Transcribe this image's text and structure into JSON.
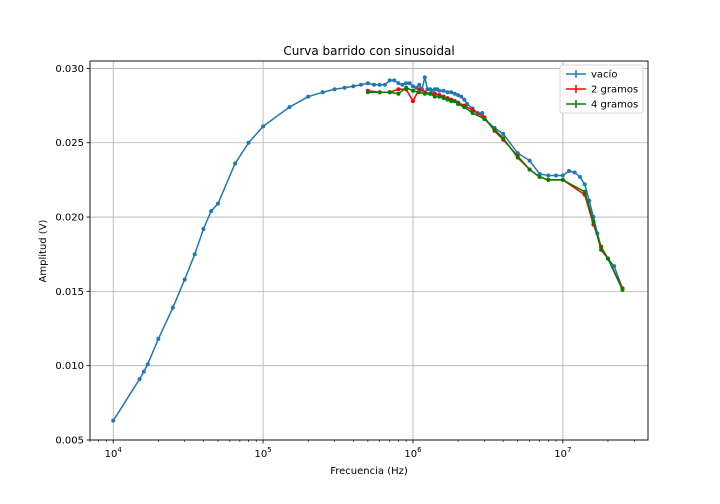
{
  "chart_data": {
    "type": "line",
    "title": "Curva barrido con sinusoidal",
    "xlabel": "Frecuencia (Hz)",
    "ylabel": "Amplitud (V)",
    "xscale": "log",
    "xlim": [
      7000,
      37000000
    ],
    "ylim": [
      0.005,
      0.0305
    ],
    "xticks": [
      {
        "value": 10000,
        "base": "10",
        "exp": "4"
      },
      {
        "value": 100000,
        "base": "10",
        "exp": "5"
      },
      {
        "value": 1000000,
        "base": "10",
        "exp": "6"
      },
      {
        "value": 10000000,
        "base": "10",
        "exp": "7"
      }
    ],
    "yticks": [
      {
        "value": 0.005,
        "label": "0.005"
      },
      {
        "value": 0.01,
        "label": "0.010"
      },
      {
        "value": 0.015,
        "label": "0.015"
      },
      {
        "value": 0.02,
        "label": "0.020"
      },
      {
        "value": 0.025,
        "label": "0.025"
      },
      {
        "value": 0.03,
        "label": "0.030"
      }
    ],
    "grid": true,
    "legend_position": "top-right",
    "series": [
      {
        "name": "vacío",
        "color": "#1f77b4",
        "x": [
          10000,
          15000,
          16000,
          17000,
          20000,
          25000,
          30000,
          35000,
          40000,
          45000,
          50000,
          65000,
          80000,
          100000,
          150000,
          200000,
          250000,
          300000,
          350000,
          400000,
          450000,
          500000,
          550000,
          600000,
          650000,
          700000,
          750000,
          800000,
          850000,
          900000,
          950000,
          1000000,
          1050000,
          1100000,
          1150000,
          1200000,
          1250000,
          1300000,
          1350000,
          1400000,
          1450000,
          1500000,
          1600000,
          1700000,
          1800000,
          1900000,
          2000000,
          2100000,
          2200000,
          2300000,
          2500000,
          2700000,
          2900000,
          3000000,
          3500000,
          4000000,
          5000000,
          6000000,
          7000000,
          8000000,
          9000000,
          10000000,
          11000000,
          12000000,
          13000000,
          14000000,
          15000000,
          16000000,
          17000000,
          18000000,
          20000000,
          22000000,
          25000000
        ],
        "values": [
          0.0063,
          0.0091,
          0.0096,
          0.0101,
          0.0118,
          0.0139,
          0.0158,
          0.0175,
          0.0192,
          0.0204,
          0.0209,
          0.0236,
          0.025,
          0.0261,
          0.0274,
          0.0281,
          0.0284,
          0.0286,
          0.0287,
          0.0288,
          0.0289,
          0.029,
          0.0289,
          0.0289,
          0.0289,
          0.0292,
          0.0292,
          0.029,
          0.0289,
          0.029,
          0.029,
          0.0288,
          0.0287,
          0.0289,
          0.0286,
          0.0294,
          0.0286,
          0.0286,
          0.0285,
          0.0286,
          0.0286,
          0.0285,
          0.0285,
          0.0284,
          0.0284,
          0.0283,
          0.0282,
          0.0281,
          0.0279,
          0.0276,
          0.0273,
          0.027,
          0.027,
          0.0266,
          0.026,
          0.0256,
          0.0243,
          0.0238,
          0.0229,
          0.0228,
          0.0228,
          0.0228,
          0.0231,
          0.023,
          0.0227,
          0.0222,
          0.0211,
          0.02,
          0.0189,
          0.018,
          0.0172,
          0.0167,
          0.0152
        ]
      },
      {
        "name": "2 gramos",
        "color": "#ff0000",
        "x": [
          500000,
          600000,
          700000,
          800000,
          900000,
          1000000,
          1100000,
          1200000,
          1300000,
          1400000,
          1500000,
          1600000,
          1700000,
          1800000,
          1900000,
          2000000,
          2200000,
          2500000,
          3000000,
          3500000,
          4000000,
          5000000,
          6000000,
          7000000,
          8000000,
          10000000,
          14000000,
          16000000,
          18000000,
          20000000,
          25000000
        ],
        "values": [
          0.0285,
          0.0284,
          0.0284,
          0.0286,
          0.0286,
          0.0278,
          0.0286,
          0.0284,
          0.0283,
          0.0283,
          0.0282,
          0.0281,
          0.028,
          0.0279,
          0.0278,
          0.0277,
          0.0275,
          0.0272,
          0.0267,
          0.0258,
          0.0252,
          0.0241,
          0.0232,
          0.0227,
          0.0225,
          0.0225,
          0.0215,
          0.0195,
          0.018,
          0.0172,
          0.0152
        ]
      },
      {
        "name": "4 gramos",
        "color": "#008000",
        "x": [
          500000,
          600000,
          700000,
          800000,
          900000,
          1000000,
          1100000,
          1200000,
          1300000,
          1400000,
          1500000,
          1600000,
          1700000,
          1800000,
          1900000,
          2000000,
          2200000,
          2500000,
          3000000,
          3500000,
          4000000,
          5000000,
          6000000,
          7000000,
          8000000,
          10000000,
          14000000,
          16000000,
          18000000,
          20000000,
          25000000
        ],
        "values": [
          0.0284,
          0.0284,
          0.0284,
          0.0283,
          0.0287,
          0.0285,
          0.0284,
          0.0283,
          0.0283,
          0.0281,
          0.0281,
          0.028,
          0.0279,
          0.0278,
          0.0278,
          0.0276,
          0.0274,
          0.027,
          0.0266,
          0.0259,
          0.0253,
          0.024,
          0.0232,
          0.0227,
          0.0225,
          0.0225,
          0.0217,
          0.0197,
          0.0178,
          0.0172,
          0.0151
        ]
      }
    ]
  }
}
